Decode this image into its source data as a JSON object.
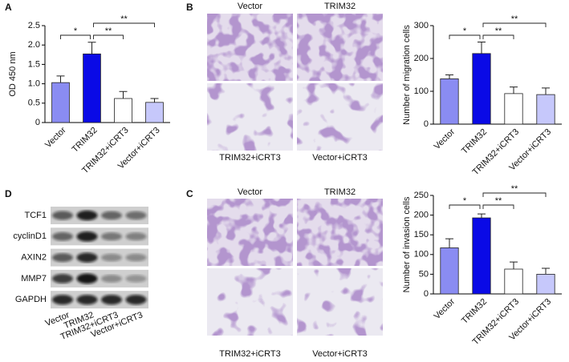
{
  "panel_labels": [
    "A",
    "B",
    "C",
    "D"
  ],
  "chart_data": [
    {
      "type": "bar",
      "ylabel": "OD 450 nm",
      "categories": [
        "Vector",
        "TRIM32",
        "TRIM32+iCRT3",
        "Vector+iCRT3"
      ],
      "values": [
        1.03,
        1.77,
        0.62,
        0.52
      ],
      "errors": [
        0.17,
        0.3,
        0.18,
        0.1
      ],
      "colors": [
        "#8a8cf2",
        "#0a0ae6",
        "#ffffff",
        "#c6c8fb"
      ],
      "ylim": [
        0,
        2.5
      ],
      "yticks": [
        0,
        0.5,
        {
          "value": 1,
          "label": "1.0"
        },
        1.5,
        {
          "value": 2,
          "label": "2.0"
        },
        2.5
      ],
      "annotations": [
        {
          "text": "*",
          "from": "Vector",
          "to": "TRIM32"
        },
        {
          "text": "**",
          "from": "TRIM32",
          "to": "TRIM32+iCRT3"
        },
        {
          "text": "**",
          "from": "TRIM32",
          "to": "Vector+iCRT3"
        }
      ]
    },
    {
      "type": "bar",
      "ylabel": "Number of migration cells",
      "categories": [
        "Vector",
        "TRIM32",
        "TRIM32+iCRT3",
        "Vector+iCRT3"
      ],
      "values": [
        138,
        215,
        93,
        90
      ],
      "errors": [
        12,
        35,
        20,
        20
      ],
      "colors": [
        "#8a8cf2",
        "#0a0ae6",
        "#ffffff",
        "#c6c8fb"
      ],
      "ylim": [
        0,
        300
      ],
      "yticks": [
        0,
        100,
        200,
        300
      ],
      "annotations": [
        {
          "text": "*",
          "from": "Vector",
          "to": "TRIM32"
        },
        {
          "text": "**",
          "from": "TRIM32",
          "to": "TRIM32+iCRT3"
        },
        {
          "text": "**",
          "from": "TRIM32",
          "to": "Vector+iCRT3"
        }
      ]
    },
    {
      "type": "bar",
      "ylabel": "Number of invasion cells",
      "categories": [
        "Vector",
        "TRIM32",
        "TRIM32+iCRT3",
        "Vector+iCRT3"
      ],
      "values": [
        117,
        193,
        63,
        50
      ],
      "errors": [
        23,
        10,
        18,
        15
      ],
      "colors": [
        "#8a8cf2",
        "#0a0ae6",
        "#ffffff",
        "#c6c8fb"
      ],
      "ylim": [
        0,
        250
      ],
      "yticks": [
        0,
        50,
        100,
        150,
        200,
        250
      ],
      "annotations": [
        {
          "text": "*",
          "from": "Vector",
          "to": "TRIM32"
        },
        {
          "text": "**",
          "from": "TRIM32",
          "to": "TRIM32+iCRT3"
        },
        {
          "text": "**",
          "from": "TRIM32",
          "to": "Vector+iCRT3"
        }
      ]
    }
  ],
  "migration_images": {
    "labels": [
      "Vector",
      "TRIM32",
      "TRIM32+iCRT3",
      "Vector+iCRT3"
    ]
  },
  "invasion_images": {
    "labels": [
      "Vector",
      "TRIM32",
      "TRIM32+iCRT3",
      "Vector+iCRT3"
    ]
  },
  "western_blot": {
    "rows": [
      "TCF1",
      "cyclinD1",
      "AXIN2",
      "MMP7",
      "GAPDH"
    ],
    "columns": [
      "Vector",
      "TRIM32",
      "TRIM32+iCRT3",
      "Vector+iCRT3"
    ]
  }
}
